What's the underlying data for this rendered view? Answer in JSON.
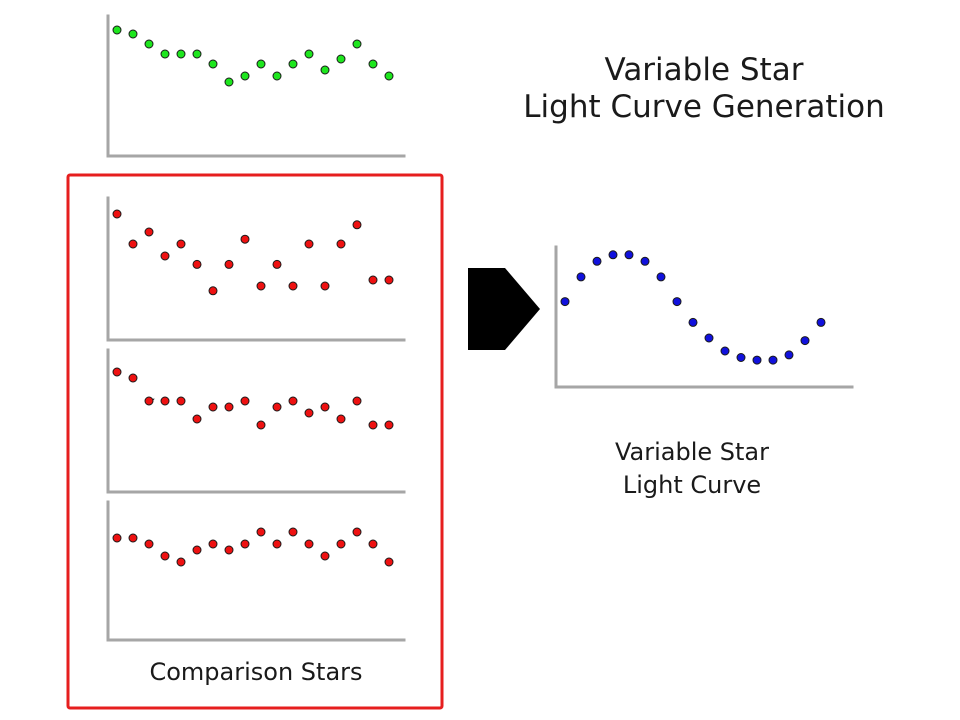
{
  "title": {
    "line1": "Variable Star",
    "line2": "Light Curve Generation"
  },
  "comparison_caption": "Comparison Stars",
  "variable_caption": {
    "line1": "Variable Star",
    "line2": "Light Curve"
  },
  "stray_mark": "~",
  "colors": {
    "target": "#1ee61e",
    "comparison": "#ee1111",
    "variable": "#1111dd",
    "frame": "#e61e1e",
    "arrow": "#000000",
    "axis": "#a6a6a6"
  },
  "chart_data": [
    {
      "type": "scatter",
      "panel": "target-star",
      "ylim": [
        0,
        10
      ],
      "x": [
        1,
        2,
        3,
        4,
        5,
        6,
        7,
        8,
        9,
        10,
        11,
        12,
        13,
        14,
        15,
        16,
        17,
        18
      ],
      "y": [
        9.2,
        8.8,
        7.8,
        6.8,
        6.8,
        6.8,
        5.8,
        4.0,
        4.6,
        5.8,
        4.6,
        5.8,
        6.8,
        5.2,
        6.3,
        7.8,
        5.8,
        4.6
      ]
    },
    {
      "type": "scatter",
      "panel": "comparison-star-1",
      "ylim": [
        0,
        10
      ],
      "x": [
        1,
        2,
        3,
        4,
        5,
        6,
        7,
        8,
        9,
        10,
        11,
        12,
        13,
        14,
        15,
        16,
        17,
        18
      ],
      "y": [
        9.0,
        6.5,
        7.5,
        5.5,
        6.5,
        4.8,
        2.6,
        4.8,
        6.9,
        3.0,
        4.8,
        3.0,
        6.5,
        3.0,
        6.5,
        8.1,
        3.5,
        3.5
      ]
    },
    {
      "type": "scatter",
      "panel": "comparison-star-2",
      "ylim": [
        0,
        10
      ],
      "x": [
        1,
        2,
        3,
        4,
        5,
        6,
        7,
        8,
        9,
        10,
        11,
        12,
        13,
        14,
        15,
        16,
        17,
        18
      ],
      "y": [
        9.0,
        8.4,
        6.1,
        6.1,
        6.1,
        4.3,
        5.5,
        5.5,
        6.1,
        3.7,
        5.5,
        6.1,
        4.9,
        5.5,
        4.3,
        6.1,
        3.7,
        3.7
      ]
    },
    {
      "type": "scatter",
      "panel": "comparison-star-3",
      "ylim": [
        0,
        10
      ],
      "x": [
        1,
        2,
        3,
        4,
        5,
        6,
        7,
        8,
        9,
        10,
        11,
        12,
        13,
        14,
        15,
        16,
        17,
        18
      ],
      "y": [
        6.4,
        6.4,
        5.8,
        4.6,
        4.0,
        5.2,
        5.8,
        5.2,
        5.8,
        7.0,
        5.8,
        7.0,
        5.8,
        4.6,
        5.8,
        7.0,
        5.8,
        4.0
      ]
    },
    {
      "type": "scatter",
      "panel": "variable-star",
      "ylim": [
        0,
        10
      ],
      "x": [
        1,
        2,
        3,
        4,
        5,
        6,
        7,
        8,
        9,
        10,
        11,
        12,
        13,
        14,
        15,
        16,
        17
      ],
      "y": [
        5.8,
        7.7,
        8.9,
        9.4,
        9.4,
        8.9,
        7.7,
        5.8,
        4.2,
        3.0,
        2.0,
        1.5,
        1.3,
        1.3,
        1.7,
        2.8,
        4.2
      ]
    }
  ]
}
